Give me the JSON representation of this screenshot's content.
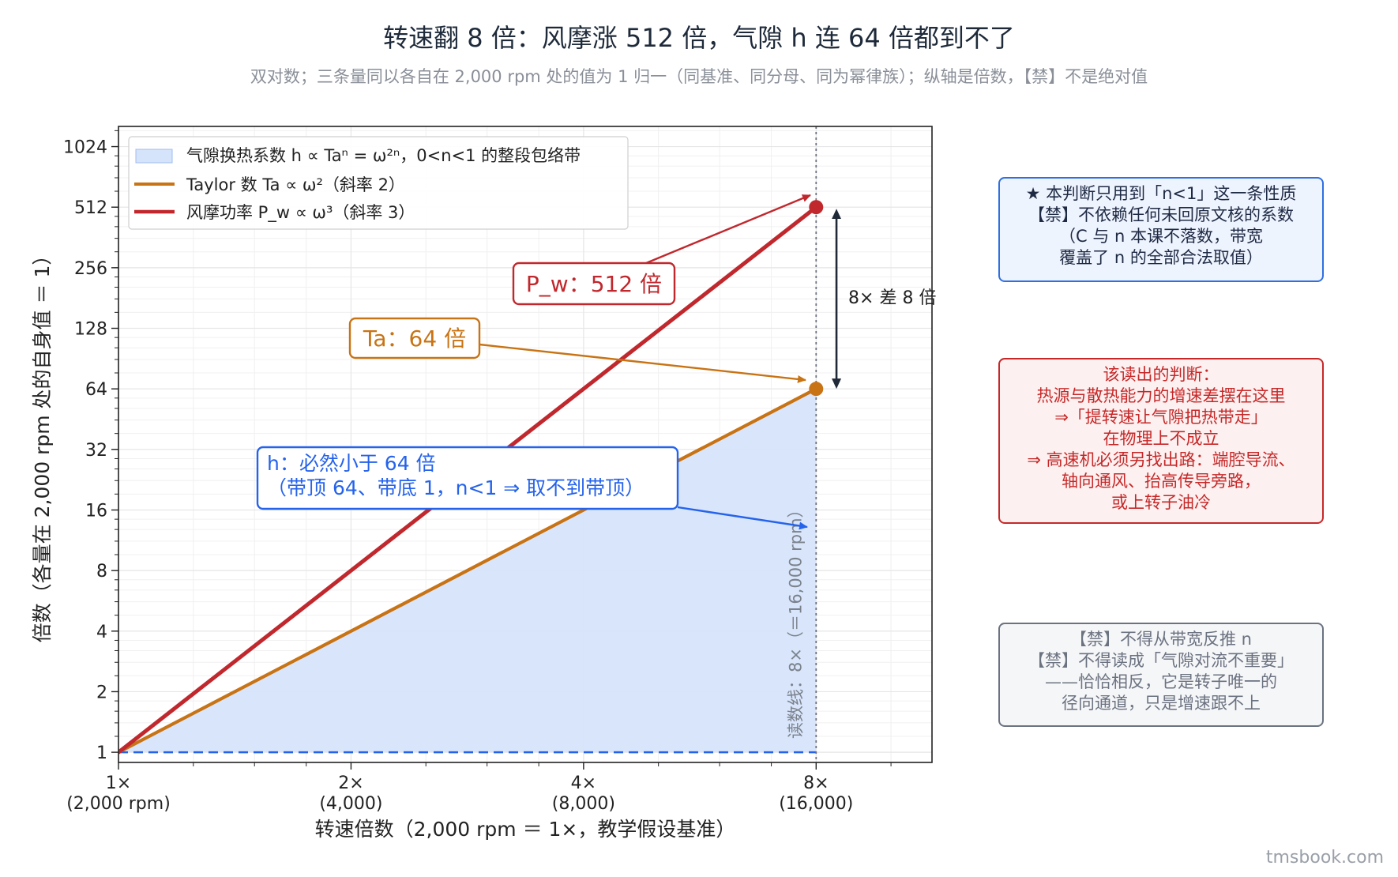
{
  "title": "转速翻 8 倍：风摩涨 512 倍，气隙 h 连 64 倍都到不了",
  "subtitle": "双对数；三条量同以各自在 2,000 rpm 处的值为 1 归一（同基准、同分母、同为幂律族）；纵轴是倍数，【禁】不是绝对值",
  "brand": "tmsbook.com",
  "colors": {
    "pw": "#c0282d",
    "ta": "#c87314",
    "h": "#2563eb",
    "band": "#d6e4fb",
    "arrow_black": "#1f2937",
    "grid": "#e6e6e6"
  },
  "chart_data": {
    "type": "line",
    "xscale": "log2",
    "yscale": "log2",
    "xlabel": "转速倍数（2,000 rpm ＝ 1×，教学假设基准）",
    "ylabel": "倍数（各量在 2,000 rpm 处的自身值 ＝ 1）",
    "xlim": [
      1,
      11.3
    ],
    "ylim": [
      0.89,
      1290
    ],
    "grid": true,
    "legend_position": "top-left",
    "x_ticks": [
      {
        "value": 1,
        "label": "1×",
        "sublabel": "(2,000 rpm)"
      },
      {
        "value": 2,
        "label": "2×",
        "sublabel": "(4,000)"
      },
      {
        "value": 4,
        "label": "4×",
        "sublabel": "(8,000)"
      },
      {
        "value": 8,
        "label": "8×",
        "sublabel": "(16,000)"
      }
    ],
    "y_ticks": [
      {
        "value": 1,
        "label": "1"
      },
      {
        "value": 2,
        "label": "2"
      },
      {
        "value": 4,
        "label": "4"
      },
      {
        "value": 8,
        "label": "8"
      },
      {
        "value": 16,
        "label": "16"
      },
      {
        "value": 32,
        "label": "32"
      },
      {
        "value": 64,
        "label": "64"
      },
      {
        "value": 128,
        "label": "128"
      },
      {
        "value": 256,
        "label": "256"
      },
      {
        "value": 512,
        "label": "512"
      },
      {
        "value": 1024,
        "label": "1024"
      }
    ],
    "series": [
      {
        "name": "风摩功率 P_w ∝ ω³（斜率 3）",
        "x": [
          1,
          8
        ],
        "y": [
          1,
          512
        ],
        "color": "#c0282d"
      },
      {
        "name": "Taylor 数 Ta ∝ ω²（斜率 2）",
        "x": [
          1,
          8
        ],
        "y": [
          1,
          64
        ],
        "color": "#c87314"
      }
    ],
    "band": {
      "name": "气隙换热系数 h ∝ Taⁿ = ω²ⁿ，0<n<1 的整段包络带",
      "x": [
        1,
        8
      ],
      "lower": [
        1,
        1
      ],
      "upper": [
        1,
        64
      ]
    },
    "points": [
      {
        "x": 8,
        "y": 512,
        "color": "#c0282d"
      },
      {
        "x": 8,
        "y": 64,
        "color": "#c87314"
      }
    ],
    "vline": {
      "x": 8,
      "label": "读数线：8×（＝16,000 rpm）"
    },
    "gap_annotation": {
      "x": 8.5,
      "y_from": 64,
      "y_to": 512,
      "label": "8× 差 8 倍"
    },
    "callouts": [
      {
        "id": "pw",
        "lines": [
          "P_w：512 倍"
        ],
        "target": [
          8,
          512
        ]
      },
      {
        "id": "ta",
        "lines": [
          "Ta：64 倍"
        ],
        "target": [
          8,
          64
        ]
      },
      {
        "id": "h",
        "lines": [
          "h：必然小于 64 倍",
          "（带顶 64、带底 1，n<1 ⇒ 取不到带顶）"
        ],
        "target": [
          8,
          13
        ]
      }
    ]
  },
  "side_notes": {
    "star": [
      "★ 本判断只用到「n<1」这一条性质",
      "【禁】不依赖任何未回原文核的系数",
      "（C 与 n 本课不落数，带宽",
      "覆盖了 n 的全部合法取值）"
    ],
    "judge": [
      "该读出的判断：",
      "热源与散热能力的增速差摆在这里",
      "⇒「提转速让气隙把热带走」",
      "在物理上不成立",
      "⇒ 高速机必须另找出路：端腔导流、",
      "轴向通风、抬高传导旁路，",
      "或上转子油冷"
    ],
    "forbid": [
      "【禁】不得从带宽反推 n",
      "【禁】不得读成「气隙对流不重要」",
      "——恰恰相反，它是转子唯一的",
      "径向通道，只是增速跟不上"
    ]
  }
}
